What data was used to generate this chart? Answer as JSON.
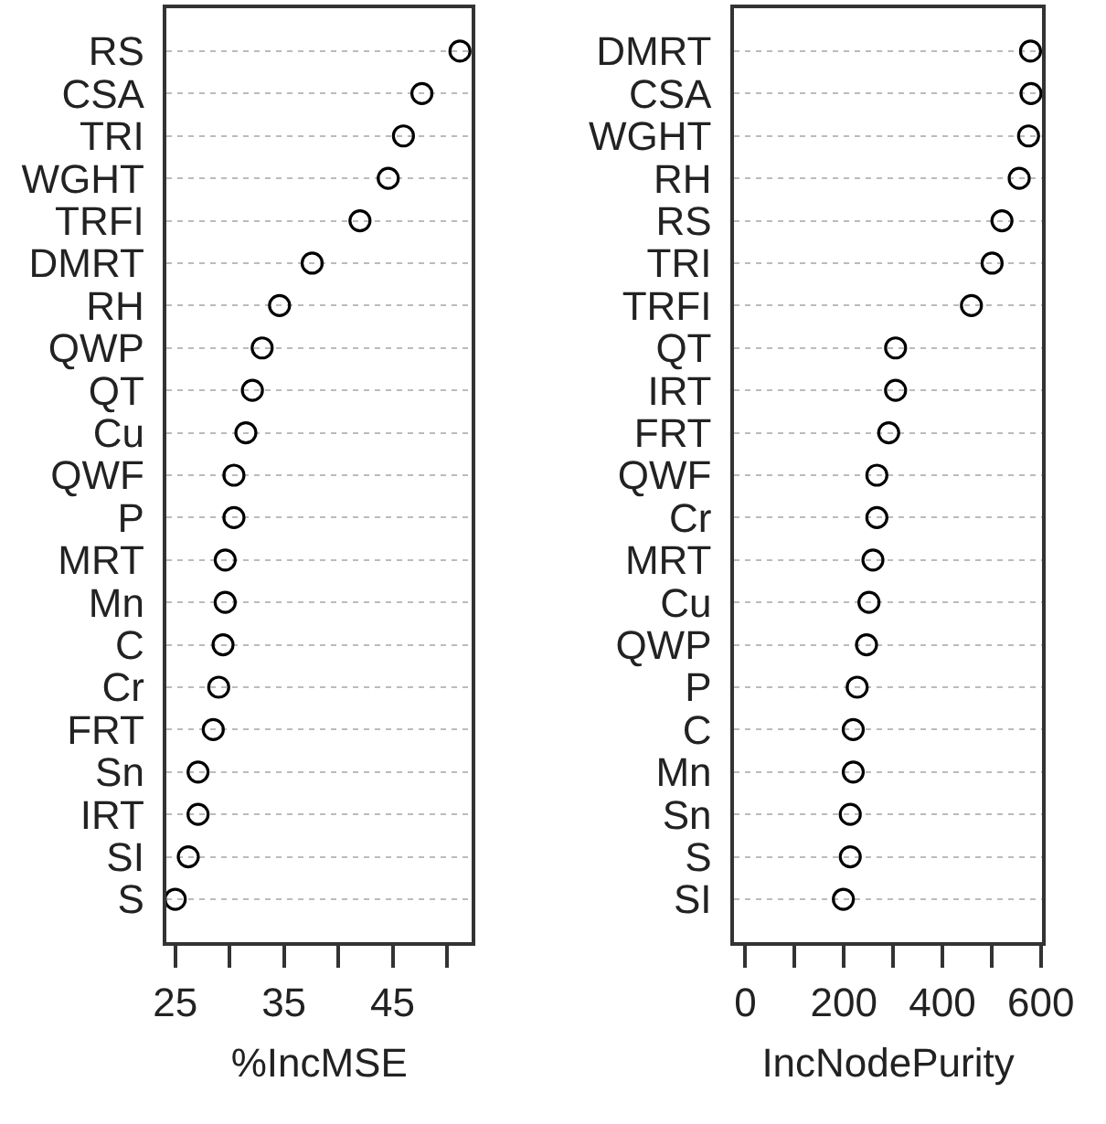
{
  "chart_data": [
    {
      "type": "scatter",
      "orientation": "horizontal",
      "xlabel": "%IncMSE",
      "categories": [
        "RS",
        "CSA",
        "TRI",
        "WGHT",
        "TRFI",
        "DMRT",
        "RH",
        "QWP",
        "QT",
        "Cu",
        "QWF",
        "P",
        "MRT",
        "Mn",
        "C",
        "Cr",
        "FRT",
        "Sn",
        "IRT",
        "SI",
        "S"
      ],
      "values": [
        51.2,
        47.7,
        46.0,
        44.6,
        42.0,
        37.6,
        34.6,
        33.0,
        32.1,
        31.5,
        30.4,
        30.4,
        29.6,
        29.6,
        29.4,
        29.0,
        28.5,
        27.1,
        27.1,
        26.2,
        25.0
      ],
      "color": "#000000",
      "marker": "circle",
      "grid": "y",
      "xlim": [
        24.2,
        52.3
      ],
      "xticks": [
        25,
        {
          "value": 30,
          "label": null
        },
        35,
        {
          "value": 40,
          "label": null
        },
        45,
        {
          "value": 50,
          "label": null
        }
      ]
    },
    {
      "type": "scatter",
      "orientation": "horizontal",
      "xlabel": "IncNodePurity",
      "categories": [
        "DMRT",
        "CSA",
        "WGHT",
        "RH",
        "RS",
        "TRI",
        "TRFI",
        "QT",
        "IRT",
        "FRT",
        "QWF",
        "Cr",
        "MRT",
        "Cu",
        "QWP",
        "P",
        "C",
        "Mn",
        "Sn",
        "S",
        "SI"
      ],
      "values": [
        579,
        580,
        575,
        556,
        521,
        501,
        459,
        305,
        305,
        291,
        267,
        267,
        259,
        251,
        246,
        227,
        219,
        219,
        213,
        213,
        199
      ],
      "color": "#000000",
      "marker": "circle",
      "grid": "y",
      "xlim": [
        -23.5,
        603
      ],
      "xticks": [
        0,
        {
          "value": 100,
          "label": null
        },
        200,
        {
          "value": 300,
          "label": null
        },
        400,
        {
          "value": 500,
          "label": null
        },
        600
      ]
    }
  ]
}
